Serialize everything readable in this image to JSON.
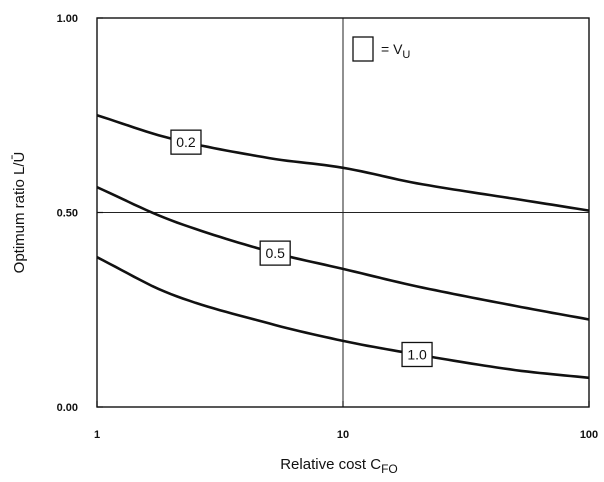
{
  "chart_data": {
    "type": "line",
    "xlabel": {
      "main": "Relative cost C",
      "sub": "FO"
    },
    "ylabel": "Optimum ratio L/Ū",
    "x_scale": "log",
    "xlim": [
      1,
      100
    ],
    "ylim": [
      0,
      1
    ],
    "x_ticks": [
      {
        "value": 1,
        "label": "1"
      },
      {
        "value": 10,
        "label": "10"
      },
      {
        "value": 100,
        "label": "100"
      }
    ],
    "y_ticks": [
      {
        "value": 0,
        "label": "0.00"
      },
      {
        "value": 0.5,
        "label": "0.50"
      },
      {
        "value": 1,
        "label": "1.00"
      }
    ],
    "grid_x": [
      10
    ],
    "grid_y": [
      0.5
    ],
    "legend": {
      "position": "top-right",
      "text_main": "= V",
      "text_sub": "U"
    },
    "series": [
      {
        "name": "0.2",
        "label_at_x": 2.3,
        "x": [
          1,
          2,
          5,
          10,
          20,
          50,
          100
        ],
        "y": [
          0.75,
          0.69,
          0.64,
          0.615,
          0.575,
          0.535,
          0.505
        ]
      },
      {
        "name": "0.5",
        "label_at_x": 5.3,
        "x": [
          1,
          2,
          5,
          10,
          20,
          50,
          100
        ],
        "y": [
          0.565,
          0.48,
          0.4,
          0.355,
          0.31,
          0.26,
          0.225
        ]
      },
      {
        "name": "1.0",
        "label_at_x": 20,
        "x": [
          1,
          2,
          5,
          10,
          20,
          50,
          100
        ],
        "y": [
          0.385,
          0.29,
          0.215,
          0.17,
          0.135,
          0.095,
          0.075
        ]
      }
    ]
  }
}
